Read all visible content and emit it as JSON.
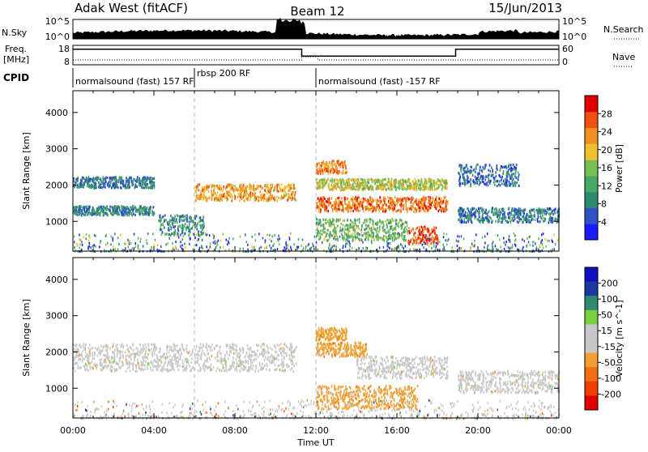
{
  "header": {
    "station": "Adak West (fitACF)",
    "beam": "Beam 12",
    "date": "15/Jun/2013"
  },
  "top_labels": {
    "nsky": "N.Sky",
    "nsearch": "N.Search",
    "freq": "Freq.",
    "freq_unit": "[MHz]",
    "nave": "Nave",
    "cpid": "CPID"
  },
  "nsky_axis": {
    "left_ticks": [
      "10^5",
      "10^0"
    ],
    "right_ticks": [
      "10^5",
      "10^0"
    ]
  },
  "freq_axis": {
    "left_ticks": [
      "18",
      "8"
    ],
    "right_ticks": [
      "60",
      "0"
    ]
  },
  "cpid_segments": [
    {
      "label": "normalsound (fast) 157 RF",
      "start": 0,
      "end": 6
    },
    {
      "label": "rbsp 200 RF",
      "start": 6,
      "end": 12
    },
    {
      "label": "normalsound (fast) -157 RF",
      "start": 12,
      "end": 24
    }
  ],
  "colors": {
    "power_scale": [
      "#1a1aff",
      "#3050c8",
      "#2f8a70",
      "#48a868",
      "#78c050",
      "#f0c030",
      "#f09020",
      "#f05010",
      "#e00000"
    ],
    "velocity_scale": [
      "#e00000",
      "#f04000",
      "#f07010",
      "#f0a030",
      "#c8c8c8",
      "#c8c8c8",
      "#78d040",
      "#2f8a70",
      "#1a3aa0",
      "#1010c0"
    ]
  },
  "chart_data": [
    {
      "type": "heatmap",
      "title": "Power",
      "xlabel": "",
      "ylabel": "Slant Range [km]",
      "x_range_ut_hours": [
        0,
        24
      ],
      "ylim": [
        180,
        4600
      ],
      "yticks": [
        "1000",
        "2000",
        "3000",
        "4000"
      ],
      "colorbar": {
        "label": "Power [dB]",
        "ticks": [
          "4",
          "8",
          "12",
          "16",
          "20",
          "24",
          "28"
        ],
        "range": [
          0,
          32
        ]
      },
      "features": [
        {
          "name": "band",
          "t_start": 0,
          "t_end": 4,
          "range_km": [
            1950,
            2250
          ],
          "value": 8
        },
        {
          "name": "band",
          "t_start": 0,
          "t_end": 4,
          "range_km": [
            1200,
            1450
          ],
          "value": 9
        },
        {
          "name": "band",
          "t_start": 4.2,
          "t_end": 6.5,
          "range_km": [
            650,
            1200
          ],
          "value": 10
        },
        {
          "name": "band",
          "t_start": 6,
          "t_end": 11,
          "range_km": [
            1600,
            2050
          ],
          "value": 22
        },
        {
          "name": "band",
          "t_start": 12,
          "t_end": 18.5,
          "range_km": [
            1300,
            1700
          ],
          "value": 25
        },
        {
          "name": "band",
          "t_start": 12,
          "t_end": 18.5,
          "range_km": [
            1900,
            2200
          ],
          "value": 18
        },
        {
          "name": "band",
          "t_start": 12,
          "t_end": 16.5,
          "range_km": [
            500,
            1100
          ],
          "value": 14
        },
        {
          "name": "band",
          "t_start": 12,
          "t_end": 13.5,
          "range_km": [
            2350,
            2700
          ],
          "value": 24
        },
        {
          "name": "band",
          "t_start": 16.5,
          "t_end": 18,
          "range_km": [
            400,
            900
          ],
          "value": 27
        },
        {
          "name": "band",
          "t_start": 19,
          "t_end": 24,
          "range_km": [
            1000,
            1400
          ],
          "value": 8
        },
        {
          "name": "band",
          "t_start": 19,
          "t_end": 22,
          "range_km": [
            2000,
            2600
          ],
          "value": 7
        }
      ]
    },
    {
      "type": "heatmap",
      "title": "Velocity",
      "xlabel": "Time UT",
      "ylabel": "Slant Range [km]",
      "x_range_ut_hours": [
        0,
        24
      ],
      "ylim": [
        180,
        4600
      ],
      "yticks": [
        "1000",
        "2000",
        "3000",
        "4000"
      ],
      "xticks": [
        "00:00",
        "04:00",
        "08:00",
        "12:00",
        "16:00",
        "20:00",
        "00:00"
      ],
      "colorbar": {
        "label": "Velocity [m s^-1]",
        "ticks": [
          "200",
          "100",
          "50",
          "15",
          "-15",
          "-50",
          "-100",
          "-200"
        ],
        "range": [
          -250,
          250
        ]
      },
      "features": [
        {
          "name": "band",
          "t_start": 0,
          "t_end": 11,
          "range_km": [
            1500,
            2250
          ],
          "value": 0
        },
        {
          "name": "band",
          "t_start": 12,
          "t_end": 14.5,
          "range_km": [
            1900,
            2300
          ],
          "value": -70
        },
        {
          "name": "band",
          "t_start": 12,
          "t_end": 13.5,
          "range_km": [
            2350,
            2700
          ],
          "value": -60
        },
        {
          "name": "band",
          "t_start": 12,
          "t_end": 17,
          "range_km": [
            450,
            1100
          ],
          "value": -60
        },
        {
          "name": "band",
          "t_start": 14,
          "t_end": 18.5,
          "range_km": [
            1300,
            1900
          ],
          "value": 0
        },
        {
          "name": "band",
          "t_start": 19,
          "t_end": 24,
          "range_km": [
            900,
            1500
          ],
          "value": 0
        }
      ]
    }
  ],
  "xaxis_label": "Time UT"
}
